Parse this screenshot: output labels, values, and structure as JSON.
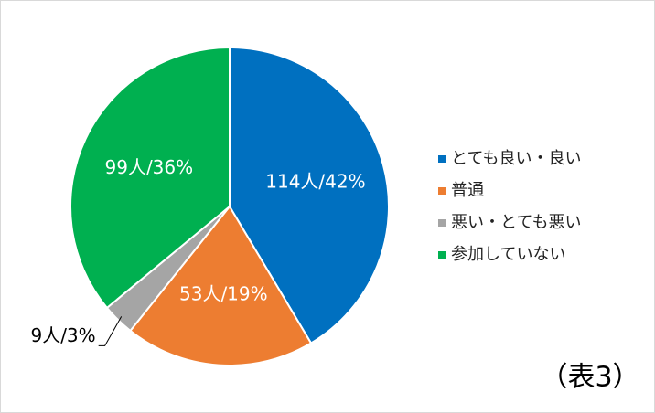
{
  "chart_data": {
    "type": "pie",
    "categories": [
      "とても良い・良い",
      "普通",
      "悪い・とても悪い",
      "参加していない"
    ],
    "values": [
      114,
      53,
      9,
      99
    ],
    "value_labels": [
      "114人/42%",
      "53人/19%",
      "9人/3%",
      "99人/36%"
    ],
    "colors": [
      "#0070c0",
      "#ed7d31",
      "#a5a5a5",
      "#00b050"
    ],
    "legend": "right",
    "annotation": "（表3）"
  }
}
